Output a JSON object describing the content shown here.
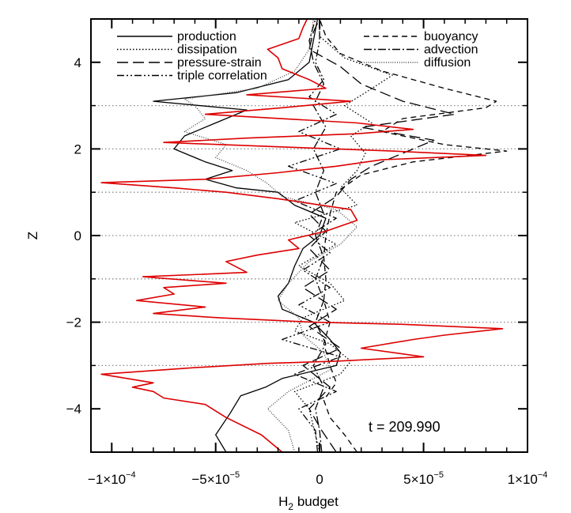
{
  "chart_data": {
    "type": "line",
    "title": "",
    "xlabel": "H",
    "xlabel_subscript": "2",
    "xlabel_suffix": " budget",
    "ylabel": "Z",
    "xlim": [
      -0.00011,
      0.0001
    ],
    "ylim": [
      -5,
      5
    ],
    "x_ticks": [
      {
        "value": -0.0001,
        "label": "−1×10",
        "exp": "−4"
      },
      {
        "value": -5e-05,
        "label": "−5×10",
        "exp": "−5"
      },
      {
        "value": 0,
        "label": "0",
        "exp": ""
      },
      {
        "value": 5e-05,
        "label": "5×10",
        "exp": "−5"
      },
      {
        "value": 0.0001,
        "label": "1×10",
        "exp": "−4"
      }
    ],
    "y_ticks": [
      -4,
      -2,
      0,
      2,
      4
    ],
    "y_tick_labels": [
      "−4",
      "−2",
      "0",
      "2",
      "4"
    ],
    "grid": {
      "horizontal_dotted_at": [
        3,
        2,
        1,
        0,
        -1,
        -2,
        -3
      ]
    },
    "legend_position": "top",
    "annotation": "t = 209.990",
    "series": [
      {
        "name": "production",
        "style": "solid",
        "color": "#000000",
        "points": [
          [
            -4.5e-05,
            -5
          ],
          [
            -5e-05,
            -4.6
          ],
          [
            -4.3e-05,
            -4.1
          ],
          [
            -3.8e-05,
            -3.7
          ],
          [
            -2.6e-05,
            -3.5
          ],
          [
            -1.8e-05,
            -3.3
          ],
          [
            8e-06,
            -3.0
          ],
          [
            1e-05,
            -2.7
          ],
          [
            5e-06,
            -2.4
          ],
          [
            -3e-06,
            -2.0
          ],
          [
            -1.8e-05,
            -1.7
          ],
          [
            -2e-05,
            -1.4
          ],
          [
            -1.5e-05,
            -1.1
          ],
          [
            -1.2e-05,
            -0.7
          ],
          [
            -8e-06,
            -0.3
          ],
          [
            0.0,
            0.0
          ],
          [
            3e-06,
            0.4
          ],
          [
            -1.2e-05,
            0.7
          ],
          [
            -2e-05,
            1.0
          ],
          [
            -4e-05,
            1.1
          ],
          [
            -5.5e-05,
            1.3
          ],
          [
            -4.2e-05,
            1.5
          ],
          [
            -5.5e-05,
            1.7
          ],
          [
            -7e-05,
            2.0
          ],
          [
            -6.5e-05,
            2.3
          ],
          [
            -5e-05,
            2.6
          ],
          [
            -3.5e-05,
            2.9
          ],
          [
            -8e-05,
            3.1
          ],
          [
            -4e-05,
            3.3
          ],
          [
            -1.5e-05,
            3.6
          ],
          [
            -5e-06,
            4.0
          ],
          [
            -3e-06,
            4.5
          ],
          [
            -1e-06,
            5.0
          ]
        ]
      },
      {
        "name": "dissipation",
        "style": "dotted",
        "color": "#000000",
        "points": [
          [
            0.0,
            -5
          ],
          [
            -5e-06,
            -4
          ],
          [
            -1.2e-05,
            -3.6
          ],
          [
            1e-05,
            -3.2
          ],
          [
            1.5e-05,
            -2.9
          ],
          [
            5e-06,
            -2.5
          ],
          [
            -1.2e-05,
            -2.2
          ],
          [
            -8e-06,
            -1.9
          ],
          [
            1.2e-05,
            -1.5
          ],
          [
            5e-06,
            -1.1
          ],
          [
            -1e-05,
            -0.7
          ],
          [
            8e-06,
            -0.2
          ],
          [
            -1.2e-05,
            0.3
          ],
          [
            1.8e-05,
            0.7
          ],
          [
            1e-05,
            1.1
          ],
          [
            1.8e-05,
            1.5
          ],
          [
            2.2e-05,
            1.9
          ],
          [
            1.5e-05,
            2.3
          ],
          [
            2.5e-05,
            2.6
          ],
          [
            1.2e-05,
            3.0
          ],
          [
            2.2e-05,
            3.3
          ],
          [
            3.5e-05,
            3.7
          ],
          [
            1.2e-05,
            4.1
          ],
          [
            0.0,
            4.6
          ],
          [
            0.0,
            5.0
          ]
        ]
      },
      {
        "name": "pressure-strain",
        "style": "dashed",
        "color": "#000000",
        "points": [
          [
            8e-06,
            -5
          ],
          [
            1e-06,
            -4.5
          ],
          [
            -5e-06,
            -4.0
          ],
          [
            5e-06,
            -3.5
          ],
          [
            -8e-06,
            -3.0
          ],
          [
            1e-05,
            -2.6
          ],
          [
            -5e-06,
            -2.1
          ],
          [
            8e-06,
            -1.7
          ],
          [
            -8e-06,
            -1.2
          ],
          [
            5e-06,
            -0.8
          ],
          [
            -5e-06,
            -0.3
          ],
          [
            3e-06,
            0.1
          ],
          [
            -5e-06,
            0.5
          ],
          [
            8e-06,
            0.9
          ],
          [
            1.5e-05,
            1.3
          ],
          [
            2.5e-05,
            1.6
          ],
          [
            4e-05,
            1.9
          ],
          [
            5.5e-05,
            2.2
          ],
          [
            2e-05,
            2.5
          ],
          [
            6.5e-05,
            2.8
          ],
          [
            4e-05,
            3.1
          ],
          [
            2e-05,
            3.5
          ],
          [
            1e-05,
            3.9
          ],
          [
            -5e-06,
            4.3
          ],
          [
            -3e-06,
            4.7
          ],
          [
            0.0,
            5.0
          ]
        ]
      },
      {
        "name": "triple correlation",
        "style": "dash-dot-dot",
        "color": "#000000",
        "points": [
          [
            -1e-06,
            -5
          ],
          [
            -2e-06,
            -4.5
          ],
          [
            -1e-05,
            -4.0
          ],
          [
            8e-06,
            -3.6
          ],
          [
            -1.2e-05,
            -3.2
          ],
          [
            1e-05,
            -2.8
          ],
          [
            -1.8e-05,
            -2.4
          ],
          [
            5e-06,
            -2.0
          ],
          [
            -1e-05,
            -1.6
          ],
          [
            5e-06,
            -1.2
          ],
          [
            -8e-06,
            -0.8
          ],
          [
            5e-06,
            -0.4
          ],
          [
            -5e-06,
            0.0
          ],
          [
            8e-06,
            0.4
          ],
          [
            -1.2e-05,
            0.8
          ],
          [
            8e-06,
            1.2
          ],
          [
            -1.5e-05,
            1.6
          ],
          [
            1e-05,
            2.0
          ],
          [
            -1e-05,
            2.4
          ],
          [
            8e-06,
            2.8
          ],
          [
            -5e-06,
            3.2
          ],
          [
            2e-06,
            3.6
          ],
          [
            -2e-06,
            4.0
          ],
          [
            0.0,
            4.5
          ],
          [
            0.0,
            5.0
          ]
        ]
      },
      {
        "name": "buoyancy",
        "style": "short-dashed",
        "color": "#000000",
        "points": [
          [
            1.8e-05,
            -5
          ],
          [
            1.2e-05,
            -4.6
          ],
          [
            5e-06,
            -4.2
          ],
          [
            2e-06,
            -3.8
          ],
          [
            8e-06,
            -3.4
          ],
          [
            5e-06,
            -3.0
          ],
          [
            2e-06,
            -2.5
          ],
          [
            5e-06,
            -2.0
          ],
          [
            2e-06,
            -1.5
          ],
          [
            3e-06,
            -1.0
          ],
          [
            2e-06,
            -0.5
          ],
          [
            3e-06,
            0.0
          ],
          [
            5e-06,
            0.5
          ],
          [
            8e-06,
            1.0
          ],
          [
            2e-05,
            1.4
          ],
          [
            4.5e-05,
            1.7
          ],
          [
            9e-05,
            1.95
          ],
          [
            6e-05,
            2.1
          ],
          [
            3e-05,
            2.4
          ],
          [
            4e-05,
            2.7
          ],
          [
            8e-05,
            2.95
          ],
          [
            8.5e-05,
            3.1
          ],
          [
            6e-05,
            3.4
          ],
          [
            3e-05,
            3.8
          ],
          [
            1e-05,
            4.2
          ],
          [
            3e-06,
            4.6
          ],
          [
            0.0,
            5.0
          ]
        ]
      },
      {
        "name": "advection",
        "style": "dash-dot",
        "color": "#000000",
        "points": [
          [
            1e-06,
            -5
          ],
          [
            0.0,
            -4.5
          ],
          [
            -2e-06,
            -4.0
          ],
          [
            2e-06,
            -3.5
          ],
          [
            -3e-06,
            -3.0
          ],
          [
            3e-06,
            -2.5
          ],
          [
            -2e-06,
            -2.0
          ],
          [
            2e-06,
            -1.5
          ],
          [
            -2e-06,
            -1.0
          ],
          [
            2e-06,
            -0.5
          ],
          [
            -2e-06,
            0.0
          ],
          [
            2e-06,
            0.5
          ],
          [
            -2e-06,
            1.0
          ],
          [
            2e-06,
            1.5
          ],
          [
            -3e-06,
            2.0
          ],
          [
            3e-06,
            2.5
          ],
          [
            -3e-06,
            3.0
          ],
          [
            2e-06,
            3.5
          ],
          [
            -3e-06,
            4.0
          ],
          [
            -5e-06,
            4.5
          ],
          [
            -2e-06,
            5.0
          ]
        ]
      },
      {
        "name": "diffusion",
        "style": "fine-dotted",
        "color": "#444444",
        "points": [
          [
            -1.2e-05,
            -5
          ],
          [
            -1.5e-05,
            -4.5
          ],
          [
            -2.5e-05,
            -4.0
          ],
          [
            -1.5e-05,
            -3.6
          ],
          [
            5e-06,
            -3.1
          ],
          [
            2e-06,
            -2.7
          ],
          [
            -8e-06,
            -2.3
          ],
          [
            -1e-05,
            -1.9
          ],
          [
            -2e-05,
            -1.5
          ],
          [
            -1.5e-05,
            -1.1
          ],
          [
            -5e-06,
            -0.6
          ],
          [
            1e-05,
            -0.2
          ],
          [
            1.8e-05,
            0.2
          ],
          [
            8e-06,
            0.6
          ],
          [
            -1.8e-05,
            0.9
          ],
          [
            -2.5e-05,
            1.2
          ],
          [
            -3.5e-05,
            1.5
          ],
          [
            -5e-05,
            1.8
          ],
          [
            -4.5e-05,
            2.1
          ],
          [
            -6.5e-05,
            2.4
          ],
          [
            -5.5e-05,
            2.7
          ],
          [
            -6e-05,
            3.0
          ],
          [
            -6.5e-05,
            3.15
          ],
          [
            -3e-05,
            3.4
          ],
          [
            -1.2e-05,
            3.8
          ],
          [
            -5e-06,
            4.3
          ],
          [
            -3e-06,
            5.0
          ]
        ]
      },
      {
        "name": "",
        "style": "solid",
        "color": "#dd0000",
        "points": [
          [
            -1.8e-05,
            -5
          ],
          [
            -2.8e-05,
            -4.6
          ],
          [
            -4.5e-05,
            -4.2
          ],
          [
            -5.5e-05,
            -3.9
          ],
          [
            -7.5e-05,
            -3.75
          ],
          [
            -8e-05,
            -3.6
          ],
          [
            -9e-05,
            -3.5
          ],
          [
            -8e-05,
            -3.4
          ],
          [
            -0.000105,
            -3.2
          ],
          [
            -6e-05,
            -3.05
          ],
          [
            -2.5e-05,
            -2.95
          ],
          [
            8e-06,
            -2.9
          ],
          [
            5e-05,
            -2.8
          ],
          [
            2e-05,
            -2.6
          ],
          [
            4.5e-05,
            -2.4
          ],
          [
            6e-05,
            -2.3
          ],
          [
            8.8e-05,
            -2.15
          ],
          [
            4e-05,
            -2.05
          ],
          [
            -3e-06,
            -2.0
          ],
          [
            -4.8e-05,
            -1.9
          ],
          [
            -8e-05,
            -1.8
          ],
          [
            -5.5e-05,
            -1.65
          ],
          [
            -8.8e-05,
            -1.5
          ],
          [
            -7e-05,
            -1.35
          ],
          [
            -7.5e-05,
            -1.2
          ],
          [
            -4.5e-05,
            -1.1
          ],
          [
            -8.5e-05,
            -0.95
          ],
          [
            -3.5e-05,
            -0.85
          ],
          [
            -4.5e-05,
            -0.6
          ],
          [
            -3e-05,
            -0.45
          ],
          [
            -1e-05,
            -0.3
          ],
          [
            -1.5e-05,
            -0.1
          ],
          [
            3e-06,
            0.1
          ],
          [
            1.8e-05,
            0.35
          ],
          [
            1.5e-05,
            0.6
          ],
          [
            -2e-05,
            0.85
          ],
          [
            -4.5e-05,
            1.0
          ],
          [
            -7e-05,
            1.1
          ],
          [
            -0.000105,
            1.22
          ],
          [
            -5.5e-05,
            1.3
          ],
          [
            -2e-05,
            1.45
          ],
          [
            8e-06,
            1.6
          ],
          [
            3e-05,
            1.75
          ],
          [
            8e-05,
            1.85
          ],
          [
            3.5e-05,
            1.95
          ],
          [
            -2e-05,
            2.05
          ],
          [
            -7.5e-05,
            2.15
          ],
          [
            -3.5e-05,
            2.25
          ],
          [
            1.8e-05,
            2.35
          ],
          [
            4.5e-05,
            2.45
          ],
          [
            1.8e-05,
            2.6
          ],
          [
            -5.5e-05,
            2.8
          ],
          [
            -1.8e-05,
            2.95
          ],
          [
            1.5e-05,
            3.1
          ],
          [
            -3.5e-05,
            3.25
          ],
          [
            3e-06,
            3.4
          ],
          [
            -5e-06,
            3.6
          ],
          [
            -1.8e-05,
            3.85
          ],
          [
            -2e-05,
            4.1
          ],
          [
            -2.5e-05,
            4.3
          ],
          [
            -1e-05,
            4.55
          ],
          [
            -8e-06,
            4.8
          ],
          [
            -6e-06,
            5.0
          ]
        ]
      }
    ]
  }
}
